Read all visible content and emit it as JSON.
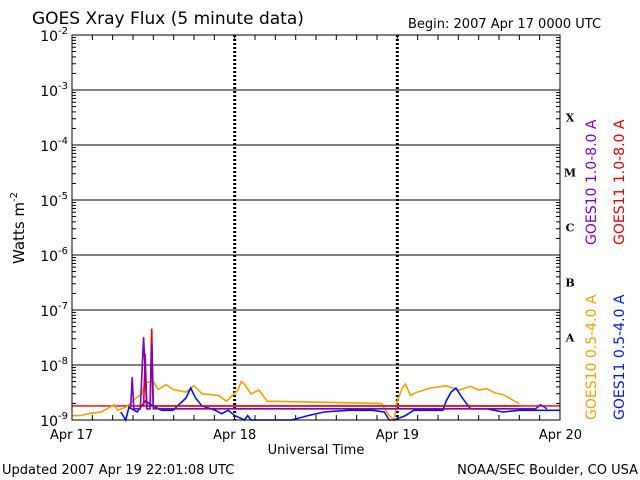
{
  "chart_data": {
    "type": "line",
    "title": "GOES Xray Flux (5 minute data)",
    "begin_label": "Begin:  2007 Apr 17 0000 UTC",
    "ylabel_main": "Watts m",
    "ylabel_sup": "-2",
    "xlabel": "Universal Time",
    "footer_left": "Updated 2007 Apr 19 22:01:08 UTC",
    "footer_right": "NOAA/SEC Boulder, CO USA",
    "y_scale": "log",
    "ylim_exp": [
      -9,
      -2
    ],
    "xlim": [
      0,
      3
    ],
    "x_ticks": [
      {
        "value": 0,
        "label": "Apr 17"
      },
      {
        "value": 1,
        "label": "Apr 18"
      },
      {
        "value": 2,
        "label": "Apr 19"
      },
      {
        "value": 3,
        "label": "Apr 20"
      }
    ],
    "y_ticks": [
      {
        "exp": -9,
        "base": "10",
        "sup": "-9"
      },
      {
        "exp": -8,
        "base": "10",
        "sup": "-8"
      },
      {
        "exp": -7,
        "base": "10",
        "sup": "-7"
      },
      {
        "exp": -6,
        "base": "10",
        "sup": "-6"
      },
      {
        "exp": -5,
        "base": "10",
        "sup": "-5"
      },
      {
        "exp": -4,
        "base": "10",
        "sup": "-4"
      },
      {
        "exp": -3,
        "base": "10",
        "sup": "-3"
      },
      {
        "exp": -2,
        "base": "10",
        "sup": "-2"
      }
    ],
    "flare_classes": [
      {
        "label": "X",
        "exp": -3.5
      },
      {
        "label": "M",
        "exp": -4.5
      },
      {
        "label": "C",
        "exp": -5.5
      },
      {
        "label": "B",
        "exp": -6.5
      },
      {
        "label": "A",
        "exp": -7.5
      }
    ],
    "grid": true,
    "reference_line": {
      "value": 1.8e-09,
      "color": "#e00000"
    },
    "legend": [
      {
        "text": "GOES10 1.0-8.0 A",
        "color": "#7a00c8"
      },
      {
        "text": "GOES11 1.0-8.0 A",
        "color": "#e00000"
      },
      {
        "text": "GOES10 0.5-4.0 A",
        "color": "#f0a000"
      },
      {
        "text": "GOES11 0.5-4.0 A",
        "color": "#0018d8"
      }
    ],
    "series": [
      {
        "name": "GOES10 0.5-4.0 A",
        "color": "#f0a000",
        "points": [
          [
            0,
            1.2e-09
          ],
          [
            0.05,
            1.2e-09
          ],
          [
            0.1,
            1.3e-09
          ],
          [
            0.18,
            1.4e-09
          ],
          [
            0.26,
            1.9e-09
          ],
          [
            0.28,
            1.5e-09
          ],
          [
            0.33,
            1.7e-09
          ],
          [
            0.4,
            2.6e-09
          ],
          [
            0.43,
            3e-09
          ],
          [
            0.45,
            4.8e-09
          ],
          [
            0.5,
            5e-09
          ],
          [
            0.53,
            3.6e-09
          ],
          [
            0.58,
            4.4e-09
          ],
          [
            0.62,
            3.6e-09
          ],
          [
            0.7,
            3.2e-09
          ],
          [
            0.75,
            4.2e-09
          ],
          [
            0.8,
            3e-09
          ],
          [
            0.9,
            2.8e-09
          ],
          [
            0.95,
            2.2e-09
          ],
          [
            1.02,
            3.5e-09
          ],
          [
            1.04,
            5e-09
          ],
          [
            1.06,
            4.5e-09
          ],
          [
            1.1,
            3e-09
          ],
          [
            1.15,
            3.5e-09
          ],
          [
            1.2,
            2.2e-09
          ],
          [
            1.9,
            2e-09
          ],
          [
            1.95,
            1.2e-09
          ],
          [
            1.98,
            8e-10
          ],
          [
            2.0,
            2.2e-09
          ],
          [
            2.03,
            3.8e-09
          ],
          [
            2.05,
            4.5e-09
          ],
          [
            2.08,
            2.8e-09
          ],
          [
            2.12,
            3.2e-09
          ],
          [
            2.2,
            3.8e-09
          ],
          [
            2.3,
            4.2e-09
          ],
          [
            2.38,
            3.5e-09
          ],
          [
            2.45,
            4.1e-09
          ],
          [
            2.5,
            3.5e-09
          ],
          [
            2.55,
            3.7e-09
          ],
          [
            2.6,
            3.1e-09
          ],
          [
            2.65,
            2.9e-09
          ],
          [
            2.68,
            2.6e-09
          ],
          [
            2.72,
            2.2e-09
          ],
          [
            2.75,
            2e-09
          ]
        ]
      },
      {
        "name": "GOES11 0.5-4.0 A",
        "color": "#0018d8",
        "points": [
          [
            0.3,
            1.4e-09
          ],
          [
            0.33,
            1e-09
          ],
          [
            0.35,
            1.7e-09
          ],
          [
            0.4,
            1.4e-09
          ],
          [
            0.45,
            2.2e-09
          ],
          [
            0.5,
            1.8e-09
          ],
          [
            0.55,
            1.5e-09
          ],
          [
            0.62,
            1.5e-09
          ],
          [
            0.7,
            2.5e-09
          ],
          [
            0.73,
            3.8e-09
          ],
          [
            0.76,
            2.5e-09
          ],
          [
            0.8,
            1.8e-09
          ],
          [
            0.88,
            1.5e-09
          ],
          [
            0.92,
            1.3e-09
          ],
          [
            0.96,
            1.5e-09
          ],
          [
            1.0,
            1.2e-09
          ],
          [
            1.03,
            1.1e-09
          ],
          [
            1.06,
            6e-10
          ],
          [
            1.08,
            1.2e-09
          ],
          [
            1.1,
            8e-10
          ],
          [
            1.15,
            7e-10
          ],
          [
            1.18,
            9e-10
          ],
          [
            1.2,
            6e-10
          ],
          [
            1.25,
            6e-10
          ],
          [
            1.3,
            8e-10
          ],
          [
            1.35,
            1e-09
          ],
          [
            1.45,
            1.2e-09
          ],
          [
            1.55,
            1.4e-09
          ],
          [
            1.7,
            1.5e-09
          ],
          [
            1.85,
            1.5e-09
          ],
          [
            1.92,
            1.4e-09
          ],
          [
            1.95,
            7e-10
          ],
          [
            1.98,
            6e-10
          ],
          [
            2.05,
            1.2e-09
          ],
          [
            2.1,
            1.5e-09
          ],
          [
            2.18,
            1.5e-09
          ],
          [
            2.28,
            1.5e-09
          ],
          [
            2.3,
            2.2e-09
          ],
          [
            2.33,
            3.2e-09
          ],
          [
            2.36,
            3.8e-09
          ],
          [
            2.4,
            2.5e-09
          ],
          [
            2.45,
            1.6e-09
          ],
          [
            2.55,
            1.6e-09
          ],
          [
            2.65,
            1.4e-09
          ],
          [
            2.75,
            1.5e-09
          ],
          [
            2.85,
            1.5e-09
          ],
          [
            3.0,
            1.5e-09
          ]
        ]
      },
      {
        "name": "GOES11 1.0-8.0 A",
        "color": "#e00000",
        "points": [
          [
            0.4,
            1.8e-09
          ],
          [
            0.44,
            1.8e-09
          ],
          [
            0.45,
            1.6e-08
          ],
          [
            0.46,
            1.8e-09
          ],
          [
            0.48,
            1.8e-09
          ],
          [
            0.49,
            4.6e-08
          ],
          [
            0.5,
            1.8e-09
          ],
          [
            2.75,
            1.8e-09
          ]
        ]
      },
      {
        "name": "GOES10 1.0-8.0 A",
        "color": "#7a00c8",
        "points": [
          [
            0.36,
            1.6e-09
          ],
          [
            0.37,
            6e-09
          ],
          [
            0.38,
            1.6e-09
          ],
          [
            0.42,
            1.6e-09
          ],
          [
            0.44,
            3.2e-08
          ],
          [
            0.46,
            1.6e-09
          ],
          [
            0.48,
            1.6e-09
          ],
          [
            0.49,
            2.4e-08
          ],
          [
            0.5,
            1.6e-09
          ],
          [
            2.85,
            1.6e-09
          ],
          [
            2.88,
            1.9e-09
          ],
          [
            2.92,
            1.6e-09
          ]
        ]
      }
    ]
  }
}
